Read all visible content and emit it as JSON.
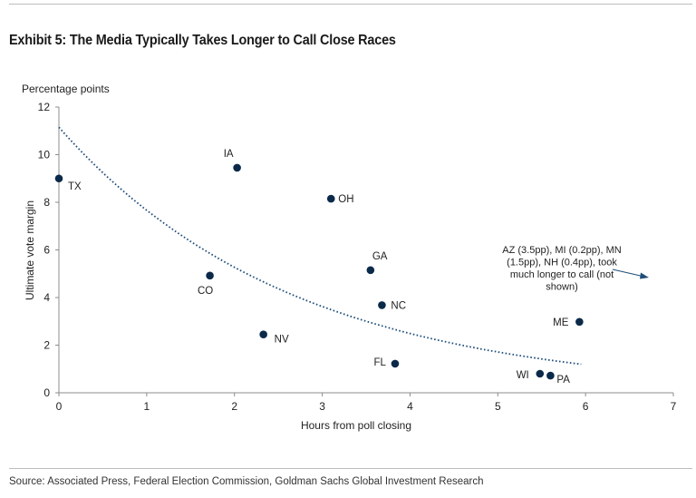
{
  "title": "Exhibit 5: The Media Typically Takes Longer to Call Close Races",
  "source": "Source: Associated Press, Federal Election Commission, Goldman Sachs Global Investment Research",
  "chart_data": {
    "type": "scatter",
    "unit_label": "Percentage points",
    "xlabel": "Hours from poll closing",
    "ylabel": "Ultimate vote margin",
    "xlim": [
      0,
      7
    ],
    "ylim": [
      0,
      12
    ],
    "xticks": [
      "0",
      "1",
      "2",
      "3",
      "4",
      "5",
      "6",
      "7"
    ],
    "yticks": [
      "0",
      "2",
      "4",
      "6",
      "8",
      "10",
      "12"
    ],
    "grid": false,
    "point_color": "#0b2a4a",
    "points": [
      {
        "label": "TX",
        "x": 0.0,
        "y": 9.0
      },
      {
        "label": "IA",
        "x": 2.03,
        "y": 9.45
      },
      {
        "label": "OH",
        "x": 3.1,
        "y": 8.15
      },
      {
        "label": "CO",
        "x": 1.72,
        "y": 4.92
      },
      {
        "label": "GA",
        "x": 3.55,
        "y": 5.15
      },
      {
        "label": "NC",
        "x": 3.68,
        "y": 3.68
      },
      {
        "label": "NV",
        "x": 2.33,
        "y": 2.45
      },
      {
        "label": "FL",
        "x": 3.83,
        "y": 1.22
      },
      {
        "label": "WI",
        "x": 5.48,
        "y": 0.8
      },
      {
        "label": "PA",
        "x": 5.6,
        "y": 0.72
      },
      {
        "label": "ME",
        "x": 5.93,
        "y": 2.98
      }
    ],
    "trendline": {
      "style": "dotted",
      "x_start": 0.0,
      "x_end": 5.95,
      "y_start": 11.15,
      "y_end": 1.2
    },
    "annotation": {
      "lines": [
        "AZ (3.5pp), MI (0.2pp), MN",
        "(1.5pp), NH (0.4pp), took",
        "much longer to call (not",
        "shown)"
      ]
    }
  }
}
